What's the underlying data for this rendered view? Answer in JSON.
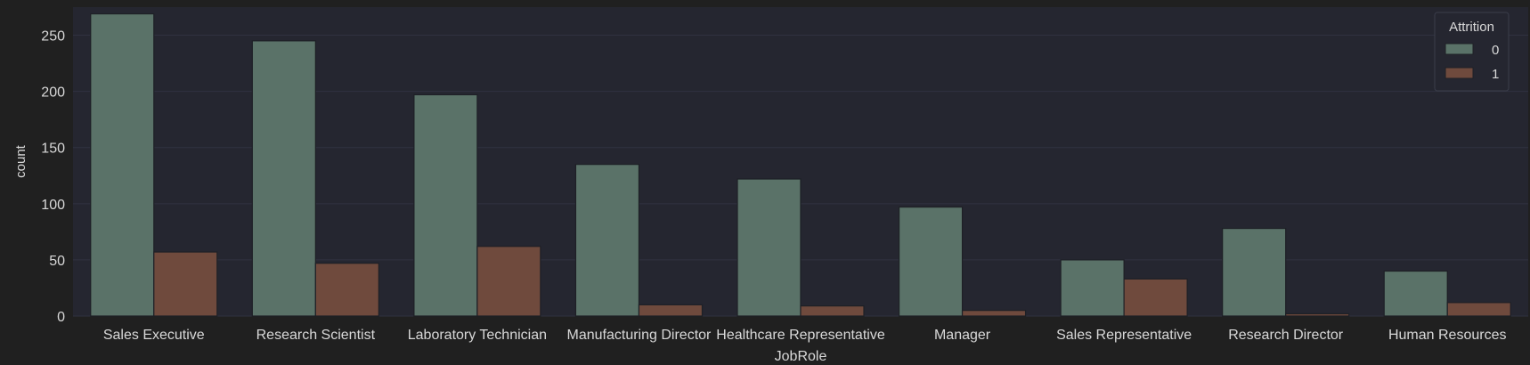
{
  "chart_data": {
    "type": "bar",
    "xlabel": "JobRole",
    "ylabel": "count",
    "categories": [
      "Sales Executive",
      "Research Scientist",
      "Laboratory Technician",
      "Manufacturing Director",
      "Healthcare Representative",
      "Manager",
      "Sales Representative",
      "Research Director",
      "Human Resources"
    ],
    "series": [
      {
        "name": "0",
        "color": "#5a7268",
        "values": [
          269,
          245,
          197,
          135,
          122,
          97,
          50,
          78,
          40
        ]
      },
      {
        "name": "1",
        "color": "#6f4a3d",
        "values": [
          57,
          47,
          62,
          10,
          9,
          5,
          33,
          2,
          12
        ]
      }
    ],
    "ylim": [
      0,
      275
    ],
    "yticks": [
      0,
      50,
      100,
      150,
      200,
      250
    ],
    "grid": true,
    "legend": {
      "title": "Attrition",
      "placement": "top-right"
    },
    "colors": {
      "figure_background": "#202020",
      "plot_background": "#252630",
      "grid": "#303240",
      "text": "#d8d8d8",
      "bar_edge": "#1e2026"
    }
  }
}
